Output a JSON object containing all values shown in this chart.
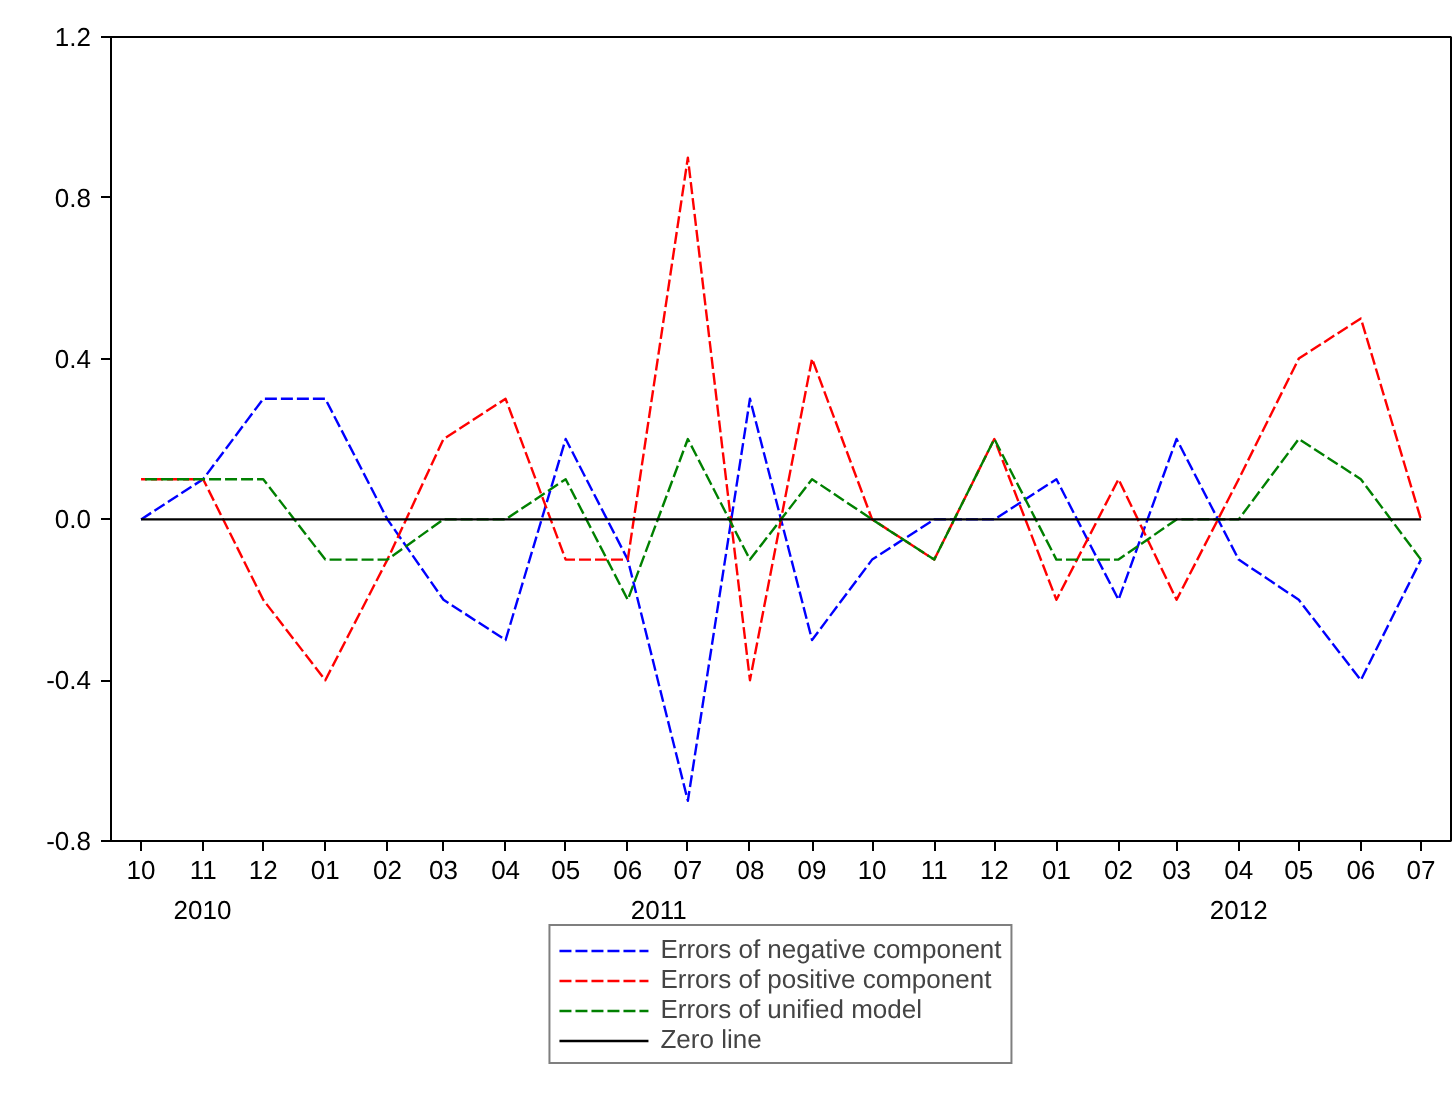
{
  "chart_data": {
    "type": "line",
    "x": [
      "2010-10",
      "2010-11",
      "2010-12",
      "2011-01",
      "2011-02",
      "2011-03",
      "2011-04",
      "2011-05",
      "2011-06",
      "2011-07",
      "2011-08",
      "2011-09",
      "2011-10",
      "2011-11",
      "2011-12",
      "2012-01",
      "2012-02",
      "2012-03",
      "2012-04",
      "2012-05",
      "2012-06",
      "2012-07"
    ],
    "series": [
      {
        "name": "Errors of negative component",
        "color": "#0000ff",
        "line_style": "dashed",
        "values": [
          0,
          0.1,
          0.3,
          0.3,
          0,
          -0.2,
          -0.3,
          0.2,
          -0.1,
          -0.7,
          0.3,
          -0.3,
          -0.1,
          0,
          0,
          0.1,
          -0.2,
          0.2,
          -0.1,
          -0.2,
          -0.4,
          -0.1
        ]
      },
      {
        "name": "Errors of positive component",
        "color": "#ff0000",
        "line_style": "dashed",
        "values": [
          0.1,
          0.1,
          -0.2,
          -0.4,
          -0.1,
          0.2,
          0.3,
          -0.1,
          -0.1,
          0.9,
          -0.4,
          0.4,
          0,
          -0.1,
          0.2,
          -0.2,
          0.1,
          -0.2,
          0.1,
          0.4,
          0.5,
          0
        ]
      },
      {
        "name": "Errors of unified model",
        "color": "#008000",
        "line_style": "dashed",
        "values": [
          0.1,
          0.1,
          0.1,
          -0.1,
          -0.1,
          0,
          0,
          0.1,
          -0.2,
          0.2,
          -0.1,
          0.1,
          0,
          -0.1,
          0.2,
          -0.1,
          -0.1,
          0,
          0,
          0.2,
          0.1,
          -0.1
        ]
      },
      {
        "name": "Zero line",
        "color": "#000000",
        "line_style": "solid",
        "values": [
          0,
          0,
          0,
          0,
          0,
          0,
          0,
          0,
          0,
          0,
          0,
          0,
          0,
          0,
          0,
          0,
          0,
          0,
          0,
          0,
          0,
          0
        ]
      }
    ],
    "xlim": [
      "2010-09-16",
      "2012-07-16"
    ],
    "xticks": [
      {
        "value": "2010-10",
        "label": "10"
      },
      {
        "value": "2010-11",
        "label": "11"
      },
      {
        "value": "2010-12",
        "label": "12"
      },
      {
        "value": "2011-01",
        "label": "01"
      },
      {
        "value": "2011-02",
        "label": "02"
      },
      {
        "value": "2011-03",
        "label": "03"
      },
      {
        "value": "2011-04",
        "label": "04"
      },
      {
        "value": "2011-05",
        "label": "05"
      },
      {
        "value": "2011-06",
        "label": "06"
      },
      {
        "value": "2011-07",
        "label": "07"
      },
      {
        "value": "2011-08",
        "label": "08"
      },
      {
        "value": "2011-09",
        "label": "09"
      },
      {
        "value": "2011-10",
        "label": "10"
      },
      {
        "value": "2011-11",
        "label": "11"
      },
      {
        "value": "2011-12",
        "label": "12"
      },
      {
        "value": "2012-01",
        "label": "01"
      },
      {
        "value": "2012-02",
        "label": "02"
      },
      {
        "value": "2012-03",
        "label": "03"
      },
      {
        "value": "2012-04",
        "label": "04"
      },
      {
        "value": "2012-05",
        "label": "05"
      },
      {
        "value": "2012-06",
        "label": "06"
      },
      {
        "value": "2012-07",
        "label": "07"
      }
    ],
    "ylim": [
      -0.8,
      1.2
    ],
    "yticks": [
      -0.8,
      -0.4,
      {
        "value": 0,
        "label": "0.0"
      },
      0.4,
      0.8,
      1.2
    ],
    "annotations": [
      "2010",
      "2011",
      "2012"
    ],
    "grid": false,
    "legend": "bottom",
    "marker": "none"
  }
}
